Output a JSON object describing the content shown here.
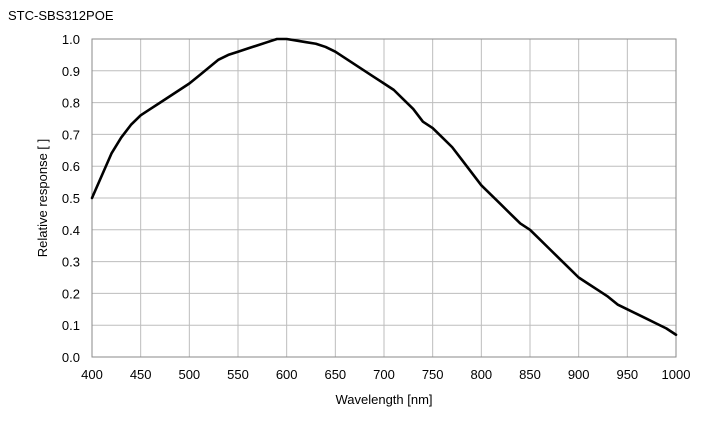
{
  "chart_data": {
    "type": "line",
    "title": "STC-SBS312POE",
    "xlabel": "Wavelength [nm]",
    "ylabel": "Relative response [ ]",
    "xlim": [
      400,
      1000
    ],
    "ylim": [
      0.0,
      1.0
    ],
    "x_ticks": [
      400,
      450,
      500,
      550,
      600,
      650,
      700,
      750,
      800,
      850,
      900,
      950,
      1000
    ],
    "x_tick_labels": [
      "400",
      "450",
      "500",
      "550",
      "600",
      "650",
      "700",
      "750",
      "800",
      "850",
      "900",
      "950",
      "1000"
    ],
    "y_ticks": [
      0.0,
      0.1,
      0.2,
      0.3,
      0.4,
      0.5,
      0.6,
      0.7,
      0.8,
      0.9,
      1.0
    ],
    "y_tick_labels": [
      "0.0",
      "0.1",
      "0.2",
      "0.3",
      "0.4",
      "0.5",
      "0.6",
      "0.7",
      "0.8",
      "0.9",
      "1.0"
    ],
    "grid": true,
    "legend": "none",
    "line_color": "#000000",
    "grid_color": "#bdbdbd",
    "series": [
      {
        "x": [
          400,
          410,
          420,
          430,
          440,
          450,
          460,
          470,
          480,
          490,
          500,
          510,
          520,
          530,
          540,
          550,
          560,
          570,
          580,
          590,
          600,
          610,
          620,
          630,
          640,
          650,
          660,
          670,
          680,
          690,
          700,
          710,
          720,
          730,
          740,
          750,
          760,
          770,
          780,
          790,
          800,
          810,
          820,
          830,
          840,
          850,
          860,
          870,
          880,
          890,
          900,
          910,
          920,
          930,
          940,
          950,
          960,
          970,
          980,
          990,
          1000
        ],
        "y": [
          0.5,
          0.57,
          0.64,
          0.69,
          0.73,
          0.76,
          0.78,
          0.8,
          0.82,
          0.84,
          0.86,
          0.885,
          0.91,
          0.935,
          0.95,
          0.96,
          0.97,
          0.98,
          0.99,
          1.0,
          1.0,
          0.995,
          0.99,
          0.985,
          0.975,
          0.96,
          0.94,
          0.92,
          0.9,
          0.88,
          0.86,
          0.84,
          0.81,
          0.78,
          0.74,
          0.72,
          0.69,
          0.66,
          0.62,
          0.58,
          0.54,
          0.51,
          0.48,
          0.45,
          0.42,
          0.4,
          0.37,
          0.34,
          0.31,
          0.28,
          0.25,
          0.23,
          0.21,
          0.19,
          0.165,
          0.15,
          0.135,
          0.12,
          0.105,
          0.09,
          0.07
        ]
      }
    ]
  }
}
